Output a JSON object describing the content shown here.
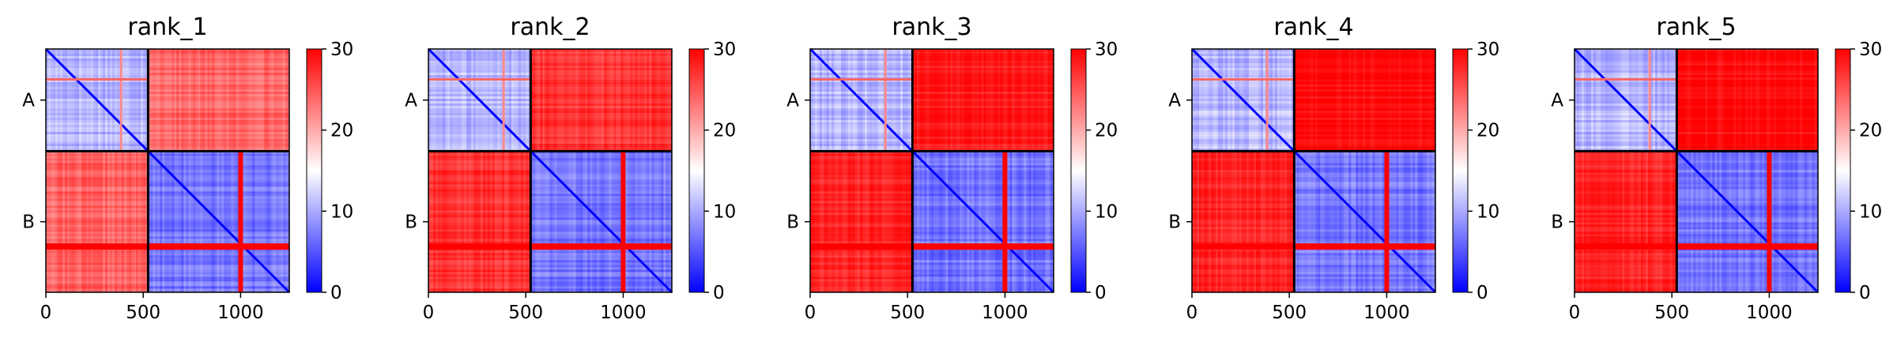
{
  "chart_data": [
    {
      "type": "heatmap",
      "title": "rank_1",
      "x_ticks": [
        0,
        500,
        1000
      ],
      "xlim": [
        0,
        1250
      ],
      "y_categories": [
        "A",
        "B"
      ],
      "chain_boundary": 525,
      "color_range": [
        0,
        30
      ],
      "colorbar_ticks": [
        0,
        10,
        20,
        30
      ],
      "colormap": [
        "#0000ff",
        "#ffffff",
        "#ff0000"
      ],
      "block_levels": {
        "A_A": 11,
        "A_B": 24,
        "B_A": 24,
        "B_B": 7
      }
    },
    {
      "type": "heatmap",
      "title": "rank_2",
      "x_ticks": [
        0,
        500,
        1000
      ],
      "xlim": [
        0,
        1250
      ],
      "y_categories": [
        "A",
        "B"
      ],
      "chain_boundary": 525,
      "color_range": [
        0,
        30
      ],
      "colorbar_ticks": [
        0,
        10,
        20,
        30
      ],
      "colormap": [
        "#0000ff",
        "#ffffff",
        "#ff0000"
      ],
      "block_levels": {
        "A_A": 11,
        "A_B": 27,
        "B_A": 27,
        "B_B": 7
      }
    },
    {
      "type": "heatmap",
      "title": "rank_3",
      "x_ticks": [
        0,
        500,
        1000
      ],
      "xlim": [
        0,
        1250
      ],
      "y_categories": [
        "A",
        "B"
      ],
      "chain_boundary": 525,
      "color_range": [
        0,
        30
      ],
      "colorbar_ticks": [
        0,
        10,
        20,
        30
      ],
      "colormap": [
        "#0000ff",
        "#ffffff",
        "#ff0000"
      ],
      "block_levels": {
        "A_A": 11,
        "A_B": 29,
        "B_A": 28,
        "B_B": 7
      }
    },
    {
      "type": "heatmap",
      "title": "rank_4",
      "x_ticks": [
        0,
        500,
        1000
      ],
      "xlim": [
        0,
        1250
      ],
      "y_categories": [
        "A",
        "B"
      ],
      "chain_boundary": 525,
      "color_range": [
        0,
        30
      ],
      "colorbar_ticks": [
        0,
        10,
        20,
        30
      ],
      "colormap": [
        "#0000ff",
        "#ffffff",
        "#ff0000"
      ],
      "block_levels": {
        "A_A": 11,
        "A_B": 30,
        "B_A": 28,
        "B_B": 7
      }
    },
    {
      "type": "heatmap",
      "title": "rank_5",
      "x_ticks": [
        0,
        500,
        1000
      ],
      "xlim": [
        0,
        1250
      ],
      "y_categories": [
        "A",
        "B"
      ],
      "chain_boundary": 525,
      "color_range": [
        0,
        30
      ],
      "colorbar_ticks": [
        0,
        10,
        20,
        30
      ],
      "colormap": [
        "#0000ff",
        "#ffffff",
        "#ff0000"
      ],
      "block_levels": {
        "A_A": 11,
        "A_B": 30,
        "B_A": 28,
        "B_B": 7
      }
    }
  ]
}
